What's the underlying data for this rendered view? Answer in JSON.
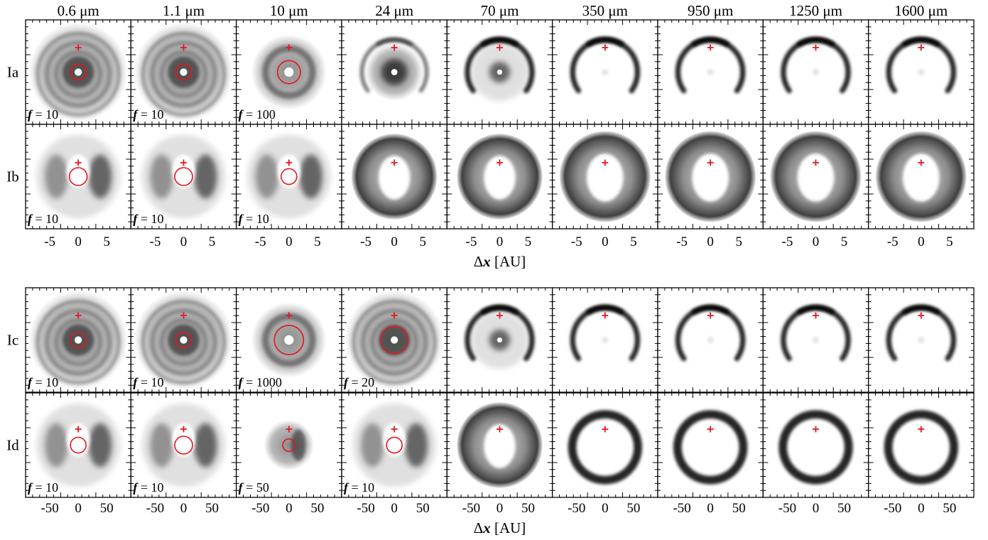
{
  "columns": [
    "0.6 μm",
    "1.1 μm",
    "10 μm",
    "24 μm",
    "70 μm",
    "350 μm",
    "950 μm",
    "1250 μm",
    "1600 μm"
  ],
  "groups": [
    {
      "id": "top",
      "tick_labels": [
        "-5",
        "0",
        "5"
      ],
      "axis_label_prefix": "Δ",
      "axis_label_var": "x",
      "axis_label_unit": " [AU]",
      "rows": [
        {
          "label": "Ia",
          "f_labels": [
            "10",
            "10",
            "100",
            "",
            "",
            "",
            "",
            "",
            ""
          ]
        },
        {
          "label": "Ib",
          "f_labels": [
            "10",
            "10",
            "10",
            "",
            "",
            "",
            "",
            "",
            ""
          ]
        }
      ]
    },
    {
      "id": "bottom",
      "tick_labels": [
        "-50",
        "0",
        "50"
      ],
      "axis_label_prefix": "Δ",
      "axis_label_var": "x",
      "axis_label_unit": " [AU]",
      "rows": [
        {
          "label": "Ic",
          "f_labels": [
            "10",
            "10",
            "1000",
            "20",
            "",
            "",
            "",
            "",
            ""
          ]
        },
        {
          "label": "Id",
          "f_labels": [
            "10",
            "10",
            "50",
            "10",
            "",
            "",
            "",
            "",
            ""
          ]
        }
      ]
    }
  ],
  "f_symbol": "f",
  "f_eq": " = ",
  "colors": {
    "marker": "#e8141c",
    "frame": "#000000",
    "ink": "#111111"
  }
}
